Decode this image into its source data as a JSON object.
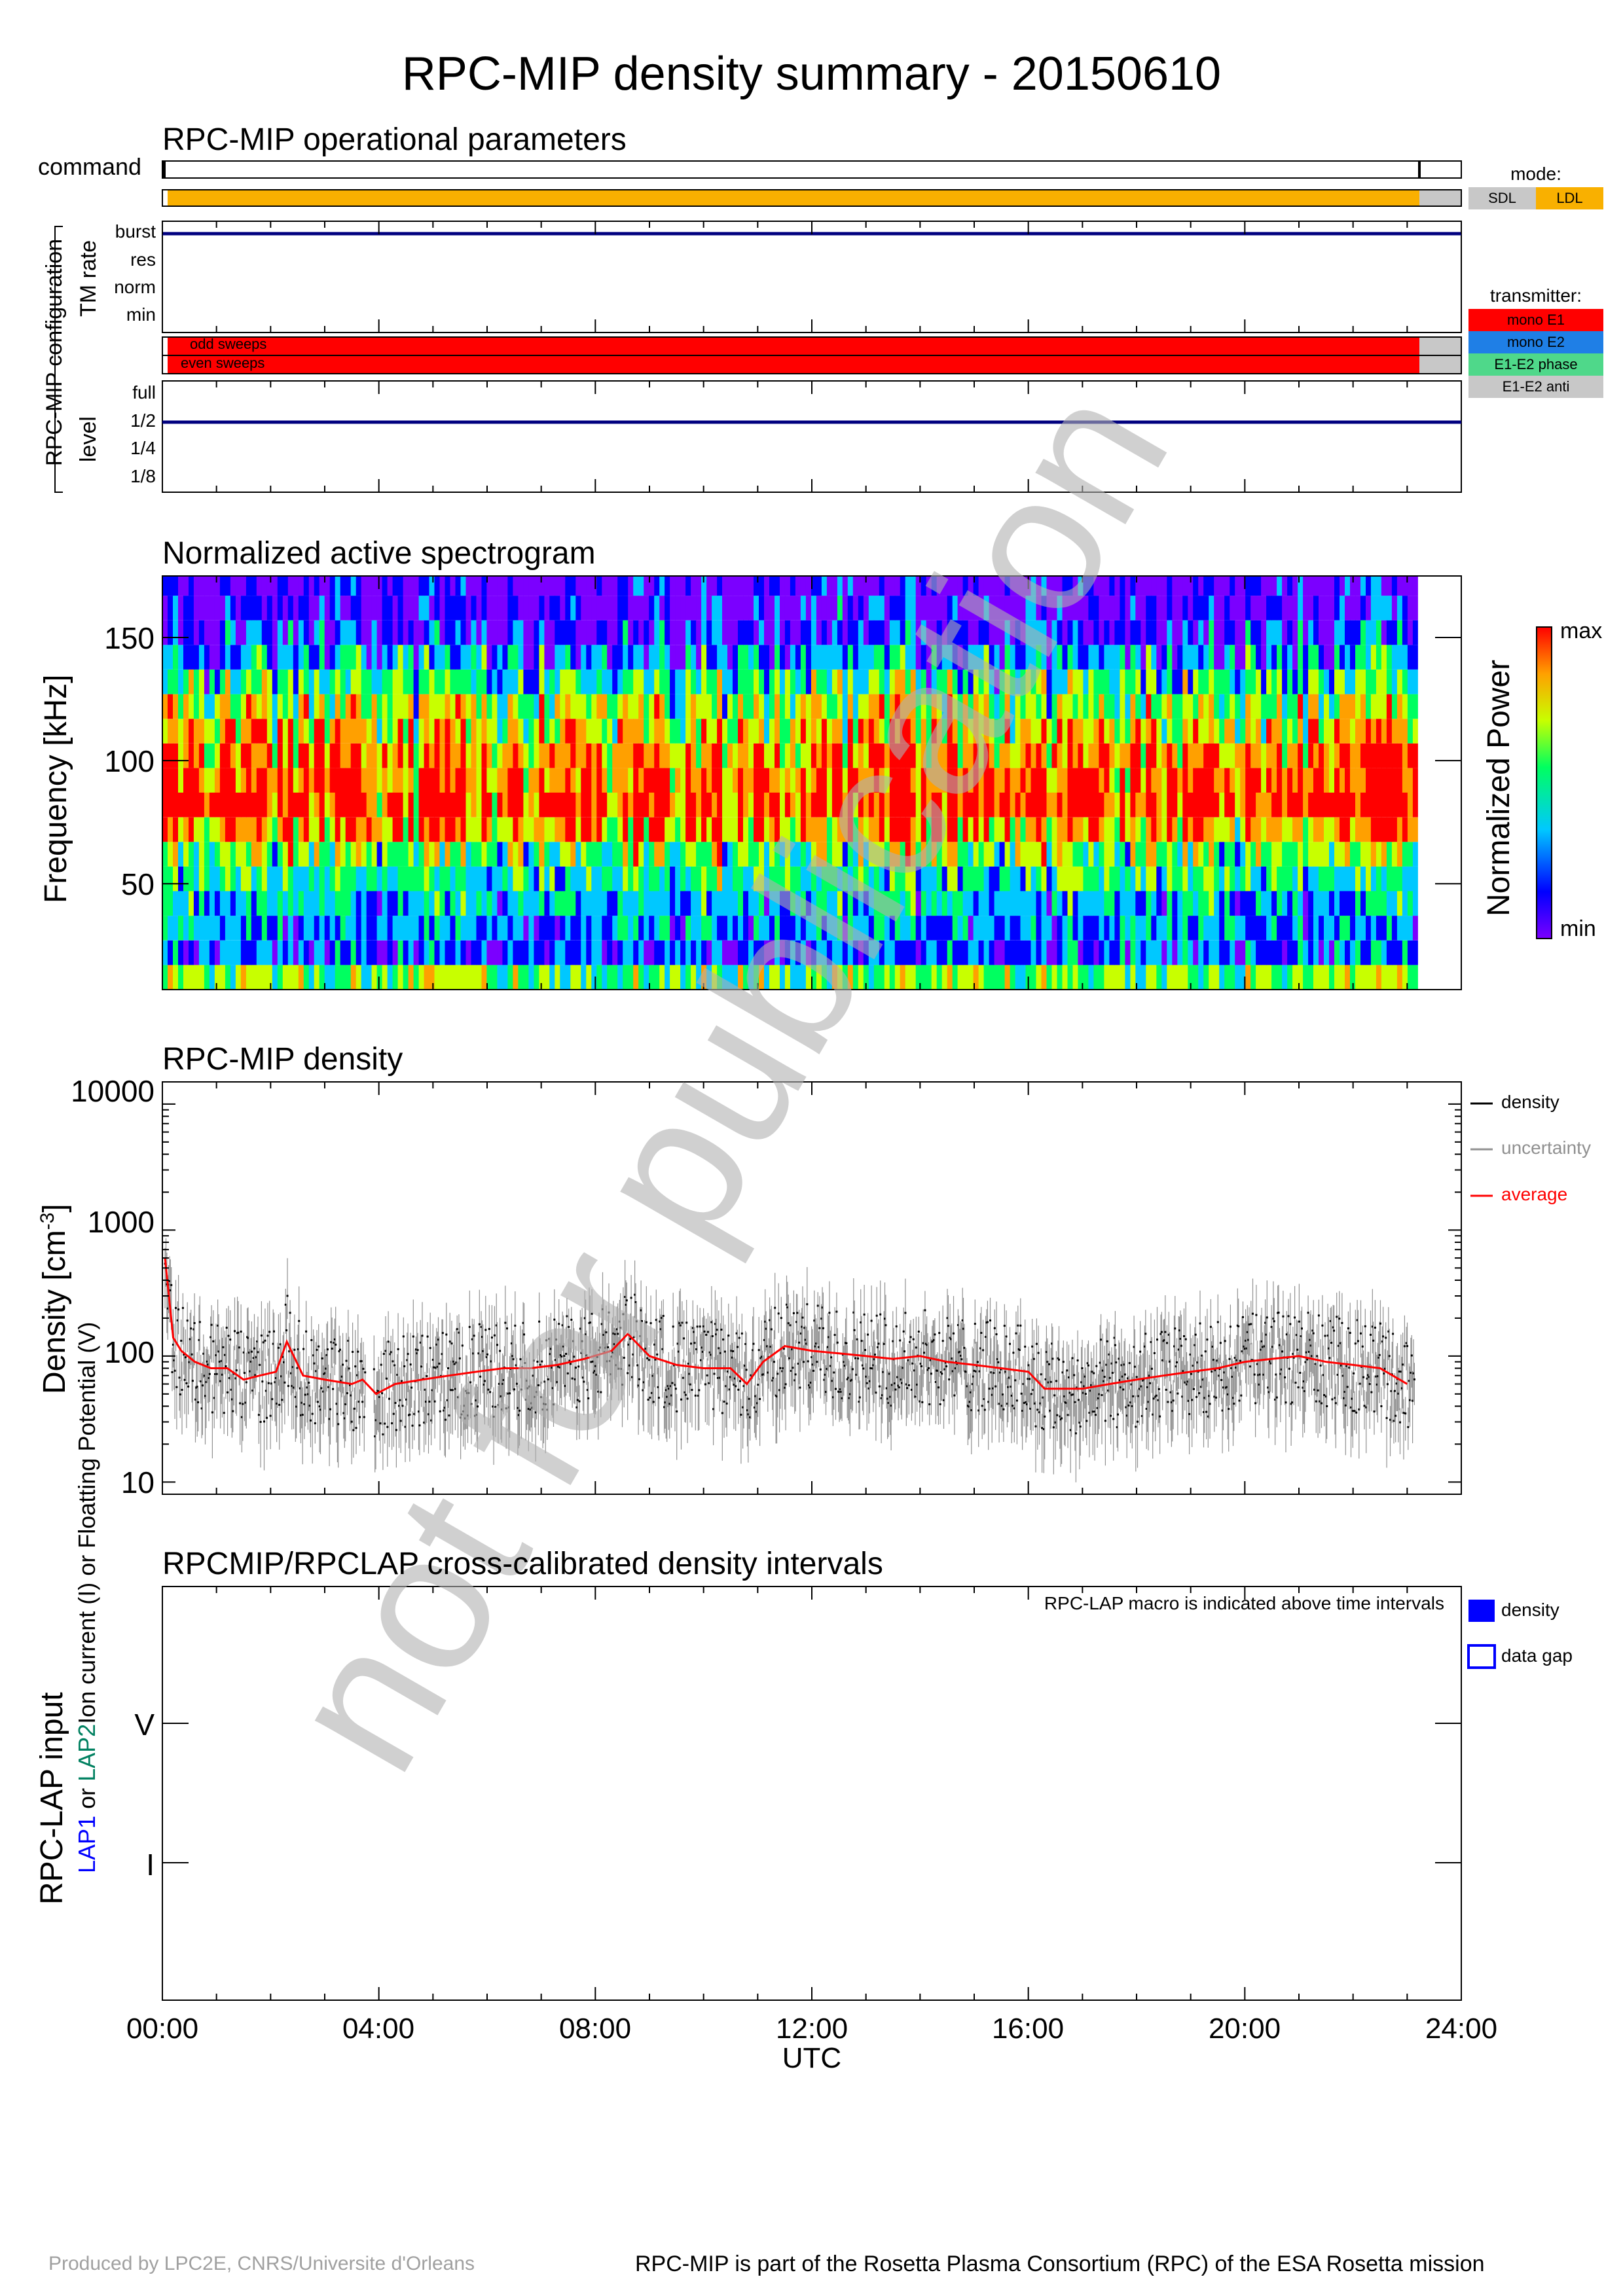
{
  "title": "RPC-MIP density summary - 20150610",
  "watermark": "not for publication",
  "footer": {
    "left": "Produced by LPC2E, CNRS/Universite d'Orleans",
    "right": "RPC-MIP is part of the Rosetta Plasma Consortium (RPC) of the ESA Rosetta mission"
  },
  "panel1": {
    "title": "RPC-MIP operational parameters",
    "command_label": "command",
    "config_label": "RPC-MIP configuration",
    "tm_rate_label": "TM rate",
    "tm_rate_ticks": [
      "burst",
      "res",
      "norm",
      "min"
    ],
    "tm_rate_value": "burst",
    "sweeps": [
      "odd sweeps",
      "even sweeps"
    ],
    "level_label": "level",
    "level_ticks": [
      "full",
      "1/2",
      "1/4",
      "1/8"
    ],
    "level_value": "1/2",
    "mode_legend": {
      "title": "mode:",
      "items": [
        {
          "label": "SDL",
          "color": "#c8c8c8"
        },
        {
          "label": "LDL",
          "color": "#f9b000"
        }
      ]
    },
    "transmitter_legend": {
      "title": "transmitter:",
      "items": [
        {
          "label": "mono E1",
          "color": "#ff0000"
        },
        {
          "label": "mono E2",
          "color": "#1f7fe6"
        },
        {
          "label": "E1-E2 phase",
          "color": "#4fd88a"
        },
        {
          "label": "E1-E2 anti",
          "color": "#c8c8c8"
        }
      ]
    },
    "colors": {
      "line": "#00007f",
      "ldl": "#f9b000",
      "mono_e1": "#ff0000",
      "sdl": "#c8c8c8"
    }
  },
  "panel2": {
    "title": "Normalized active spectrogram",
    "ylabel": "Frequency [kHz]",
    "colorbar_label": "Normalized Power",
    "colorbar_max": "max",
    "colorbar_min": "min"
  },
  "panel3": {
    "title": "RPC-MIP density",
    "ylabel": "Density [cm",
    "ylabel_sup": "-3",
    "ylabel_end": "]",
    "legend": [
      {
        "label": "density",
        "color": "#000000"
      },
      {
        "label": "uncertainty",
        "color": "#909090"
      },
      {
        "label": "average",
        "color": "#ff0000"
      }
    ]
  },
  "panel4": {
    "title": "RPCMIP/RPCLAP cross-calibrated density intervals",
    "note": "RPC-LAP macro is indicated above time intervals",
    "ylabel_main": "RPC-LAP input",
    "ylabel_lap1": "LAP1",
    "ylabel_or": " or ",
    "ylabel_lap2": "LAP2",
    "ylabel_sub": "Ion current (I) or Floatting Potential (V)",
    "yticks": [
      "V",
      "I"
    ],
    "legend": [
      {
        "label": "density",
        "color": "#0000ff"
      },
      {
        "label": "data gap",
        "color": "#0000ff"
      }
    ],
    "xlabel": "UTC"
  },
  "chart_data": [
    {
      "type": "heatmap",
      "title": "Normalized active spectrogram",
      "ylabel": "Frequency [kHz]",
      "y_ticks": [
        50,
        100,
        150
      ],
      "ylim": [
        7,
        175
      ],
      "x_ticks": [
        "00:00",
        "04:00",
        "08:00",
        "12:00",
        "16:00",
        "20:00",
        "24:00"
      ],
      "xlim_hours": [
        0,
        24
      ],
      "data_end_hours": 23.2,
      "color_scale": [
        "#7b00ff",
        "#0000ff",
        "#00c8ff",
        "#00ff60",
        "#c8ff00",
        "#ffa000",
        "#ff0000"
      ],
      "frequency_bins_khz": [
        12,
        22,
        32,
        42,
        52,
        62,
        72,
        82,
        92,
        102,
        112,
        122,
        132,
        142,
        152,
        162,
        172
      ],
      "typical_normalized_power": [
        0.55,
        0.25,
        0.3,
        0.35,
        0.45,
        0.55,
        0.75,
        0.9,
        0.85,
        0.8,
        0.7,
        0.6,
        0.45,
        0.3,
        0.15,
        0.08,
        0.05
      ]
    },
    {
      "type": "line",
      "title": "RPC-MIP density",
      "ylabel": "Density [cm-3]",
      "yscale": "log",
      "ylim": [
        8,
        15000
      ],
      "y_ticks": [
        10,
        100,
        1000,
        10000
      ],
      "x_ticks": [
        "00:00",
        "04:00",
        "08:00",
        "12:00",
        "16:00",
        "20:00",
        "24:00"
      ],
      "x_hours": [
        0.05,
        0.2,
        0.35,
        0.6,
        0.9,
        1.2,
        1.5,
        1.8,
        2.1,
        2.3,
        2.6,
        3.0,
        3.5,
        3.7,
        3.95,
        4.3,
        4.8,
        5.3,
        5.8,
        6.3,
        6.8,
        7.3,
        7.8,
        8.3,
        8.6,
        9.0,
        9.5,
        10.0,
        10.5,
        10.8,
        11.1,
        11.5,
        12.0,
        12.5,
        13.0,
        13.5,
        14.0,
        14.5,
        15.0,
        15.5,
        16.0,
        16.3,
        16.6,
        17.0,
        17.5,
        18.0,
        18.5,
        19.0,
        19.5,
        20.0,
        20.5,
        21.0,
        21.5,
        22.0,
        22.5,
        23.0
      ],
      "series": [
        {
          "name": "average",
          "color": "#ff0000",
          "values": [
            600,
            140,
            110,
            90,
            80,
            80,
            65,
            70,
            75,
            130,
            70,
            65,
            60,
            65,
            50,
            60,
            65,
            70,
            75,
            80,
            80,
            85,
            95,
            110,
            150,
            100,
            85,
            80,
            80,
            60,
            90,
            120,
            110,
            105,
            100,
            95,
            100,
            90,
            85,
            80,
            75,
            55,
            55,
            55,
            60,
            65,
            70,
            75,
            80,
            90,
            95,
            100,
            90,
            85,
            80,
            60
          ]
        }
      ],
      "average_at_12h_approx": 100
    }
  ]
}
